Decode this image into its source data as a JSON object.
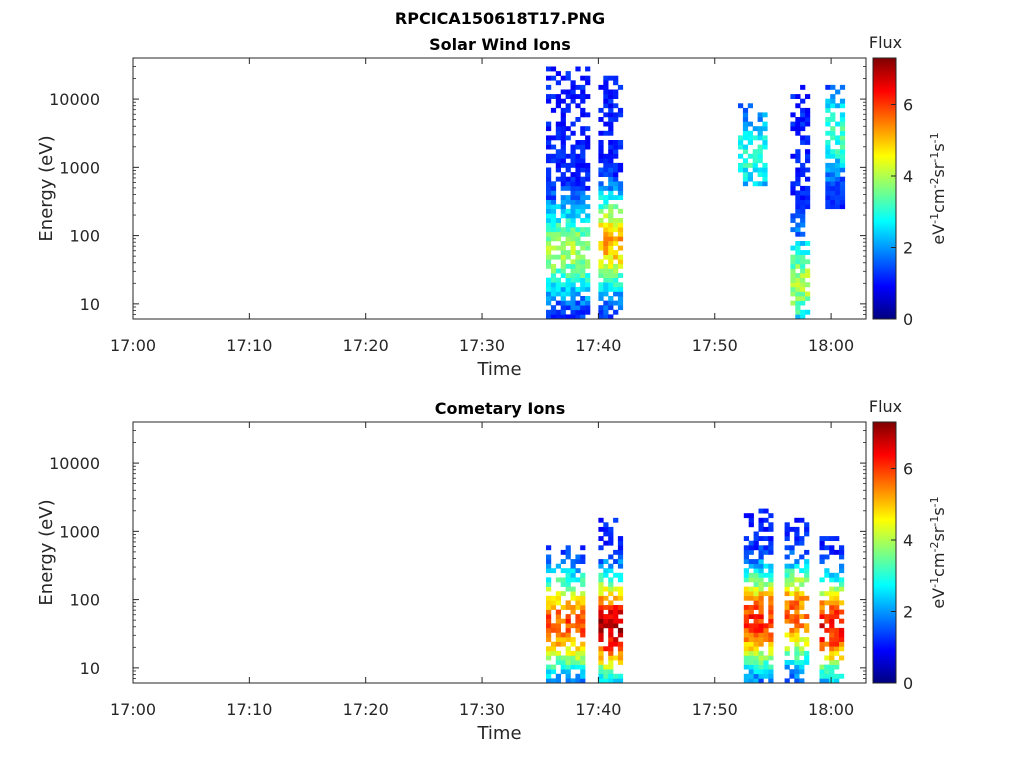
{
  "figure_title": "RPCICA150618T17.PNG",
  "colormap": [
    "#00007f",
    "#0000ff",
    "#007fff",
    "#00ffff",
    "#7fff7f",
    "#ffff00",
    "#ff7f00",
    "#ff0000",
    "#7f0000"
  ],
  "chart_data": [
    {
      "type": "heatmap",
      "title": "Solar Wind Ions",
      "xlabel": "Time",
      "ylabel": "Energy (eV)",
      "x_ticks": [
        "17:00",
        "17:10",
        "17:20",
        "17:30",
        "17:40",
        "17:50",
        "18:00"
      ],
      "x_tick_minutes": [
        0,
        10,
        20,
        30,
        40,
        50,
        60
      ],
      "xlim_minutes": [
        0,
        63
      ],
      "y_scale": "log",
      "ylim": [
        6,
        40000
      ],
      "y_ticks": [
        "10",
        "100",
        "1000",
        "10000"
      ],
      "y_tick_values": [
        10,
        100,
        1000,
        10000
      ],
      "colorbar": {
        "label": "Flux",
        "units": "eV-1cm-2sr-1s-1",
        "range": [
          0,
          7.3
        ],
        "ticks": [
          "0",
          "2",
          "4",
          "6"
        ],
        "tick_values": [
          0,
          2,
          4,
          6
        ]
      },
      "bursts": [
        {
          "start_minute": 35.5,
          "end_minute": 39.0,
          "min_energy": 6,
          "max_energy": 32000,
          "peak_flux": 3.4,
          "peak_energy": 60
        },
        {
          "start_minute": 40.0,
          "end_minute": 42.0,
          "min_energy": 6,
          "max_energy": 22000,
          "peak_flux": 4.6,
          "peak_energy": 80
        },
        {
          "start_minute": 52.0,
          "end_minute": 54.5,
          "min_energy": 500,
          "max_energy": 9000,
          "peak_flux": 2.5,
          "peak_energy": 1500
        },
        {
          "start_minute": 56.5,
          "end_minute": 58.0,
          "min_energy": 6,
          "max_energy": 16000,
          "peak_flux": 3.4,
          "peak_energy": 20
        },
        {
          "start_minute": 59.5,
          "end_minute": 61.0,
          "min_energy": 250,
          "max_energy": 17000,
          "peak_flux": 2.6,
          "peak_energy": 3000
        }
      ]
    },
    {
      "type": "heatmap",
      "title": "Cometary Ions",
      "xlabel": "Time",
      "ylabel": "Energy (eV)",
      "x_ticks": [
        "17:00",
        "17:10",
        "17:20",
        "17:30",
        "17:40",
        "17:50",
        "18:00"
      ],
      "x_tick_minutes": [
        0,
        10,
        20,
        30,
        40,
        50,
        60
      ],
      "xlim_minutes": [
        0,
        63
      ],
      "y_scale": "log",
      "ylim": [
        6,
        40000
      ],
      "y_ticks": [
        "10",
        "100",
        "1000",
        "10000"
      ],
      "y_tick_values": [
        10,
        100,
        1000,
        10000
      ],
      "colorbar": {
        "label": "Flux",
        "units": "eV-1cm-2sr-1s-1",
        "range": [
          0,
          7.3
        ],
        "ticks": [
          "0",
          "2",
          "4",
          "6"
        ],
        "tick_values": [
          0,
          2,
          4,
          6
        ]
      },
      "bursts": [
        {
          "start_minute": 35.5,
          "end_minute": 38.5,
          "min_energy": 6,
          "max_energy": 600,
          "peak_flux": 5.3,
          "peak_energy": 45
        },
        {
          "start_minute": 40.0,
          "end_minute": 42.0,
          "min_energy": 6,
          "max_energy": 1500,
          "peak_flux": 6.4,
          "peak_energy": 40
        },
        {
          "start_minute": 52.5,
          "end_minute": 55.0,
          "min_energy": 6,
          "max_energy": 2000,
          "peak_flux": 5.6,
          "peak_energy": 50
        },
        {
          "start_minute": 56.0,
          "end_minute": 58.0,
          "min_energy": 6,
          "max_energy": 1600,
          "peak_flux": 5.2,
          "peak_energy": 60
        },
        {
          "start_minute": 59.0,
          "end_minute": 61.0,
          "min_energy": 6,
          "max_energy": 800,
          "peak_flux": 5.8,
          "peak_energy": 40
        }
      ]
    }
  ]
}
